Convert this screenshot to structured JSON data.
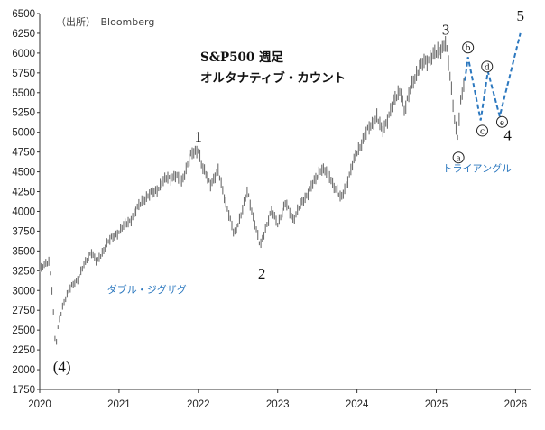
{
  "chart_data": {
    "type": "line",
    "chart_style": "weekly-range-bars",
    "title": "S&P500 週足",
    "subtitle": "オルタナティブ・カウント",
    "source": "（出所）　Bloomberg",
    "y_axis": {
      "min": 1750,
      "max": 6500,
      "ticks": [
        "1750",
        "2000",
        "2250",
        "2500",
        "2750",
        "3000",
        "3250",
        "3500",
        "3750",
        "4000",
        "4250",
        "4500",
        "4750",
        "5000",
        "5250",
        "5500",
        "5750",
        "6000",
        "6250",
        "6500"
      ]
    },
    "x_axis": {
      "min": 2020.0,
      "max": 2026.2,
      "ticks": [
        "2020",
        "2021",
        "2022",
        "2023",
        "2024",
        "2025",
        "2026"
      ]
    },
    "price_path": [
      {
        "x": 2020.0,
        "y": 3250
      },
      {
        "x": 2020.06,
        "y": 3320
      },
      {
        "x": 2020.12,
        "y": 3380
      },
      {
        "x": 2020.16,
        "y": 2950
      },
      {
        "x": 2020.2,
        "y": 2250
      },
      {
        "x": 2020.24,
        "y": 2600
      },
      {
        "x": 2020.3,
        "y": 2850
      },
      {
        "x": 2020.4,
        "y": 3050
      },
      {
        "x": 2020.48,
        "y": 3150
      },
      {
        "x": 2020.55,
        "y": 3300
      },
      {
        "x": 2020.65,
        "y": 3500
      },
      {
        "x": 2020.72,
        "y": 3350
      },
      {
        "x": 2020.85,
        "y": 3600
      },
      {
        "x": 2021.0,
        "y": 3750
      },
      {
        "x": 2021.15,
        "y": 3900
      },
      {
        "x": 2021.3,
        "y": 4150
      },
      {
        "x": 2021.45,
        "y": 4250
      },
      {
        "x": 2021.6,
        "y": 4420
      },
      {
        "x": 2021.72,
        "y": 4450
      },
      {
        "x": 2021.78,
        "y": 4350
      },
      {
        "x": 2021.9,
        "y": 4700
      },
      {
        "x": 2022.0,
        "y": 4790
      },
      {
        "x": 2022.05,
        "y": 4550
      },
      {
        "x": 2022.15,
        "y": 4350
      },
      {
        "x": 2022.25,
        "y": 4500
      },
      {
        "x": 2022.35,
        "y": 4100
      },
      {
        "x": 2022.45,
        "y": 3700
      },
      {
        "x": 2022.55,
        "y": 4000
      },
      {
        "x": 2022.62,
        "y": 4250
      },
      {
        "x": 2022.7,
        "y": 3900
      },
      {
        "x": 2022.78,
        "y": 3550
      },
      {
        "x": 2022.85,
        "y": 3800
      },
      {
        "x": 2022.92,
        "y": 4000
      },
      {
        "x": 2023.0,
        "y": 3850
      },
      {
        "x": 2023.1,
        "y": 4100
      },
      {
        "x": 2023.2,
        "y": 3900
      },
      {
        "x": 2023.3,
        "y": 4100
      },
      {
        "x": 2023.45,
        "y": 4350
      },
      {
        "x": 2023.55,
        "y": 4550
      },
      {
        "x": 2023.65,
        "y": 4450
      },
      {
        "x": 2023.8,
        "y": 4150
      },
      {
        "x": 2023.9,
        "y": 4450
      },
      {
        "x": 2024.0,
        "y": 4750
      },
      {
        "x": 2024.15,
        "y": 5050
      },
      {
        "x": 2024.25,
        "y": 5200
      },
      {
        "x": 2024.32,
        "y": 5000
      },
      {
        "x": 2024.45,
        "y": 5350
      },
      {
        "x": 2024.55,
        "y": 5550
      },
      {
        "x": 2024.6,
        "y": 5250
      },
      {
        "x": 2024.7,
        "y": 5650
      },
      {
        "x": 2024.85,
        "y": 5900
      },
      {
        "x": 2024.95,
        "y": 5950
      },
      {
        "x": 2025.05,
        "y": 6050
      },
      {
        "x": 2025.12,
        "y": 6130
      },
      {
        "x": 2025.18,
        "y": 5650
      },
      {
        "x": 2025.24,
        "y": 5100
      },
      {
        "x": 2025.27,
        "y": 4950
      },
      {
        "x": 2025.31,
        "y": 5400
      },
      {
        "x": 2025.36,
        "y": 5650
      }
    ],
    "projection": [
      {
        "x": 2025.36,
        "y": 5650
      },
      {
        "x": 2025.4,
        "y": 5950
      },
      {
        "x": 2025.56,
        "y": 5150
      },
      {
        "x": 2025.65,
        "y": 5770
      },
      {
        "x": 2025.8,
        "y": 5200
      },
      {
        "x": 2026.06,
        "y": 6250
      }
    ],
    "projection_color": "#2c78bf",
    "price_color": "#6f6f6f",
    "wave_labels": [
      {
        "text": "(4)",
        "x": 2020.28,
        "y": 1970,
        "style": "serif-large"
      },
      {
        "text": "1",
        "x": 2022.0,
        "y": 4880,
        "style": "serif"
      },
      {
        "text": "2",
        "x": 2022.8,
        "y": 3150,
        "style": "serif"
      },
      {
        "text": "3",
        "x": 2025.12,
        "y": 6230,
        "style": "serif"
      },
      {
        "text": "4",
        "x": 2025.9,
        "y": 4900,
        "style": "serif"
      },
      {
        "text": "5",
        "x": 2026.06,
        "y": 6410,
        "style": "serif"
      }
    ],
    "sub_wave_labels": [
      {
        "text": "a",
        "x": 2025.28,
        "y": 4680
      },
      {
        "text": "b",
        "x": 2025.4,
        "y": 6070
      },
      {
        "text": "c",
        "x": 2025.58,
        "y": 5020
      },
      {
        "text": "d",
        "x": 2025.64,
        "y": 5830
      },
      {
        "text": "e",
        "x": 2025.83,
        "y": 5130
      }
    ],
    "annotations": [
      {
        "text": "ダブル・ジグザグ",
        "x": 2020.85,
        "y": 2970
      },
      {
        "text": "トライアングル",
        "x": 2025.08,
        "y": 4500
      }
    ]
  }
}
